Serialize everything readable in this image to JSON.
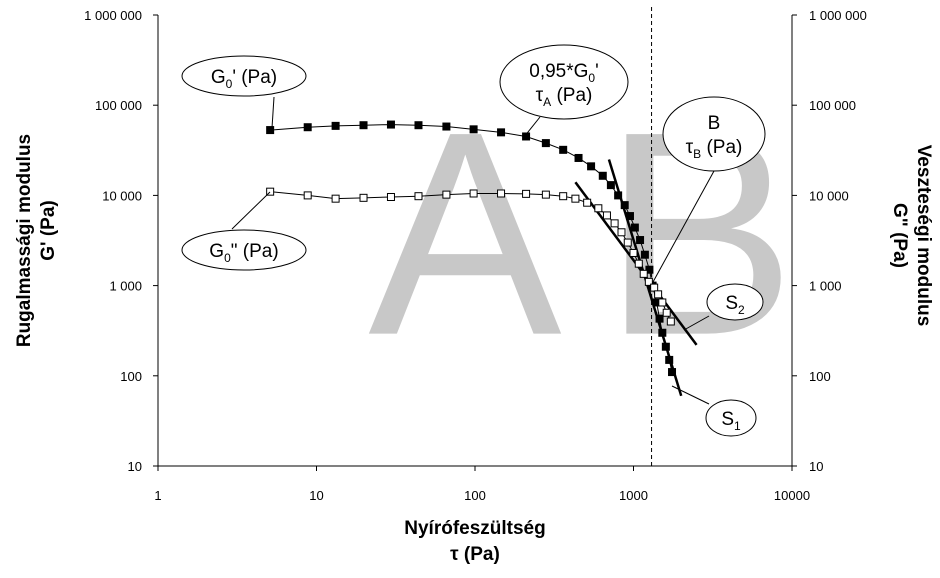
{
  "chart_data": {
    "type": "scatter",
    "xscale": "log",
    "yscale": "log",
    "xlim": [
      1,
      10000
    ],
    "ylim": [
      10,
      1000000
    ],
    "x_ticks": [
      {
        "value": 1,
        "label": "1"
      },
      {
        "value": 10,
        "label": "10"
      },
      {
        "value": 100,
        "label": "100"
      },
      {
        "value": 1000,
        "label": "1000"
      },
      {
        "value": 10000,
        "label": "10000"
      }
    ],
    "y_ticks": [
      {
        "value": 10,
        "label": "10"
      },
      {
        "value": 100,
        "label": "100"
      },
      {
        "value": 1000,
        "label": "1 000"
      },
      {
        "value": 10000,
        "label": "10 000"
      },
      {
        "value": 100000,
        "label": "100 000"
      },
      {
        "value": 1000000,
        "label": "1 000 000"
      }
    ],
    "xlabel": "Nyírófeszültség",
    "xlabel_symbol": "τ (Pa)",
    "ylabel_left": "Rugalmassági modulus",
    "ylabel_left_symbol": "G' (Pa)",
    "ylabel_right": "Veszteségi modulus",
    "ylabel_right_symbol": "G\" (Pa)",
    "region_labels": [
      "A",
      "B"
    ],
    "vertical_line": {
      "x": 1300,
      "style": "dashed"
    },
    "series": [
      {
        "marker": "filled-square",
        "color": "#000000",
        "x": [
          5.1,
          8.8,
          13.2,
          19.8,
          29.5,
          44,
          66,
          98,
          146,
          210,
          280,
          360,
          450,
          540,
          640,
          720,
          800,
          880,
          950,
          1020,
          1100,
          1180,
          1260,
          1320,
          1400,
          1460,
          1520,
          1600,
          1680,
          1750
        ],
        "y": [
          53000,
          57000,
          59000,
          60000,
          61000,
          60000,
          58000,
          54000,
          50000,
          45000,
          38000,
          32000,
          26000,
          21000,
          16500,
          13000,
          10000,
          7800,
          5900,
          4400,
          3200,
          2200,
          1500,
          1000,
          650,
          430,
          300,
          210,
          150,
          110
        ]
      },
      {
        "marker": "open-square",
        "color": "#000000",
        "x": [
          5.1,
          8.8,
          13.2,
          19.8,
          29.5,
          44,
          66,
          98,
          146,
          210,
          280,
          360,
          430,
          510,
          600,
          680,
          760,
          840,
          920,
          1000,
          1080,
          1160,
          1250,
          1350,
          1430,
          1520,
          1620,
          1720
        ],
        "y": [
          11000,
          10000,
          9200,
          9400,
          9600,
          9800,
          10200,
          10500,
          10500,
          10400,
          10200,
          9800,
          9200,
          8300,
          7200,
          6000,
          4900,
          3900,
          3000,
          2300,
          1750,
          1350,
          1100,
          950,
          800,
          650,
          500,
          400
        ]
      }
    ],
    "tangent_lines": [
      {
        "name": "S1",
        "x": [
          700,
          2000
        ],
        "y": [
          25000,
          60
        ]
      },
      {
        "name": "S2",
        "x": [
          430,
          2500
        ],
        "y": [
          14000,
          220
        ]
      }
    ],
    "annotations": [
      {
        "id": "g0-prime",
        "lines": [
          {
            "text": "G",
            "sub": "0",
            "rest": "' (Pa)"
          }
        ]
      },
      {
        "id": "g0-doubleprime",
        "lines": [
          {
            "text": "G",
            "sub": "0",
            "rest": "\" (Pa)"
          }
        ]
      },
      {
        "id": "tau-a",
        "lines": [
          {
            "text": "0,95*G",
            "sub": "0",
            "rest": "'"
          },
          {
            "text": "τ",
            "sub": "A",
            "rest": " (Pa)"
          }
        ]
      },
      {
        "id": "tau-b",
        "lines": [
          {
            "text": "B",
            "sub": "",
            "rest": ""
          },
          {
            "text": "τ",
            "sub": "B",
            "rest": " (Pa)"
          }
        ]
      },
      {
        "id": "s2",
        "lines": [
          {
            "text": "S",
            "sub": "2",
            "rest": ""
          }
        ]
      },
      {
        "id": "s1",
        "lines": [
          {
            "text": "S",
            "sub": "1",
            "rest": ""
          }
        ]
      }
    ]
  }
}
